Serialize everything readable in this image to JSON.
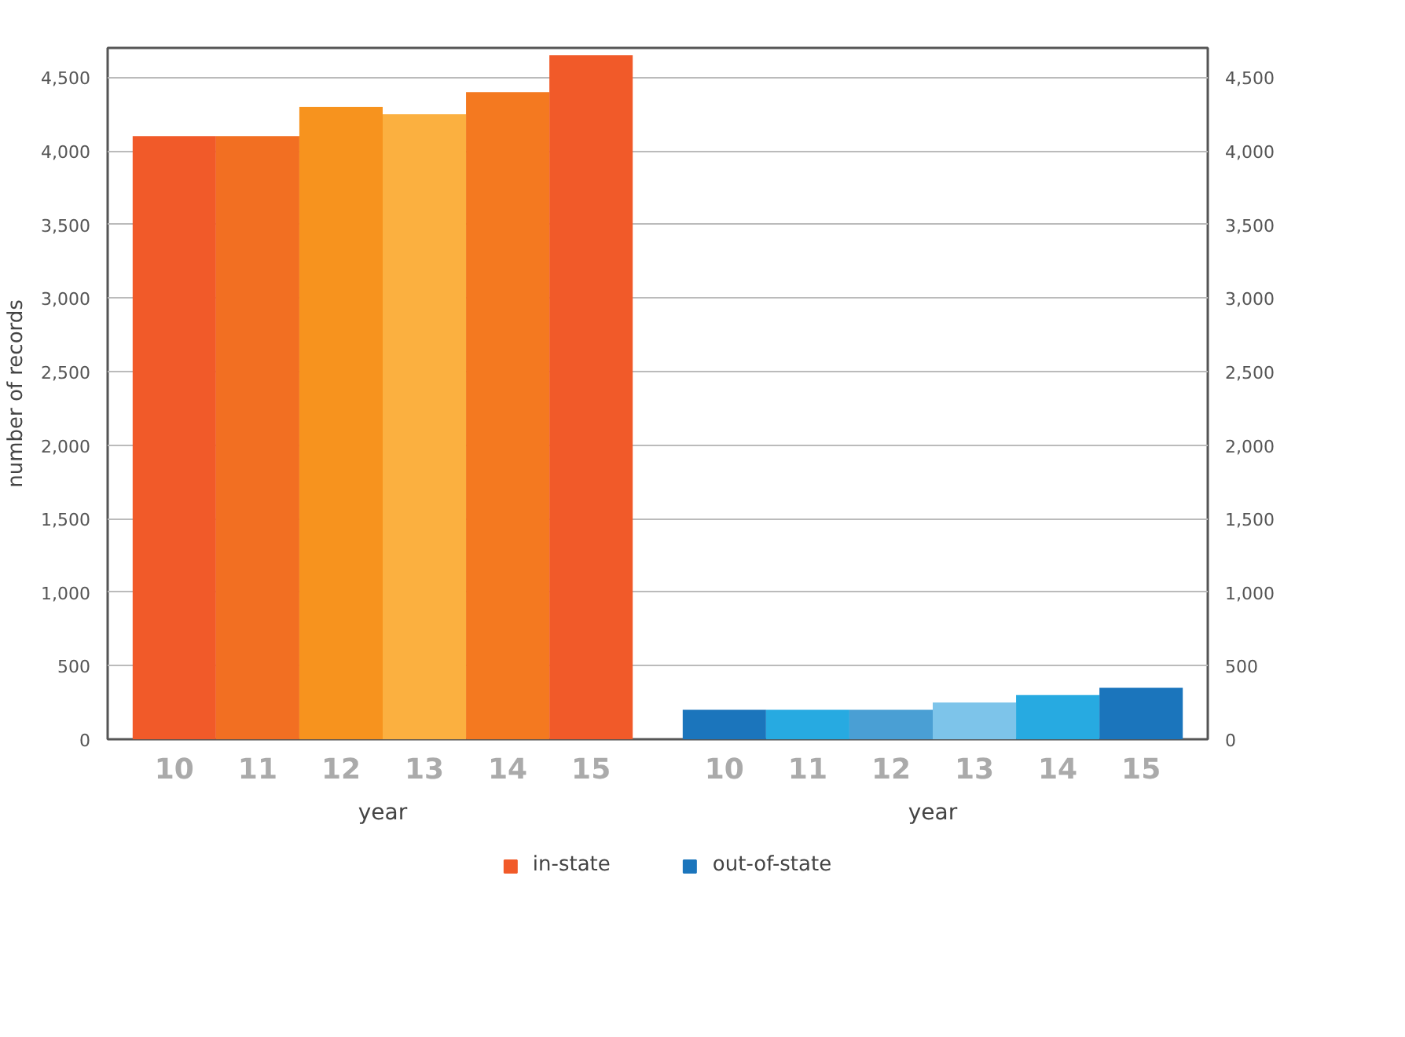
{
  "chart_data": {
    "type": "bar",
    "xlabel": "year",
    "ylabel": "number of records",
    "categories": [
      "10",
      "11",
      "12",
      "13",
      "14",
      "15",
      "10",
      "11",
      "12",
      "13",
      "14",
      "15"
    ],
    "series": [
      {
        "name": "in-state",
        "color": "#f15a29",
        "colors": [
          "#f15a29",
          "#f26f22",
          "#f7931e",
          "#fbb040",
          "#f47920",
          "#f15a29",
          null,
          null,
          null,
          null,
          null,
          null
        ],
        "values": [
          4100,
          4100,
          4300,
          4250,
          4400,
          4650,
          null,
          null,
          null,
          null,
          null,
          null
        ]
      },
      {
        "name": "out-of-state",
        "color": "#1b75bc",
        "colors": [
          null,
          null,
          null,
          null,
          null,
          null,
          "#1b75bc",
          "#27aae1",
          "#4a9fd4",
          "#7dc4ea",
          "#27aae1",
          "#1b75bc"
        ],
        "values": [
          null,
          null,
          null,
          null,
          null,
          null,
          200,
          200,
          200,
          250,
          300,
          350
        ]
      }
    ],
    "ylim": [
      0,
      4700
    ],
    "yticks": [
      0,
      {
        "value": 500,
        "label": "500"
      },
      {
        "value": 1000,
        "label": "1,000"
      },
      {
        "value": 1500,
        "label": "1,500"
      },
      {
        "value": 2000,
        "label": "2,000"
      },
      {
        "value": 2500,
        "label": "2,500"
      },
      {
        "value": 3000,
        "label": "3,000"
      },
      {
        "value": 3500,
        "label": "3,500"
      },
      {
        "value": 4000,
        "label": "4,000"
      },
      {
        "value": 4500,
        "label": "4,500"
      }
    ],
    "y2lim": [
      0,
      4700
    ],
    "y2ticks": [
      0,
      {
        "value": 500,
        "label": "500"
      },
      {
        "value": 1000,
        "label": "1,000"
      },
      {
        "value": 1500,
        "label": "1,500"
      },
      {
        "value": 2000,
        "label": "2,000"
      },
      {
        "value": 2500,
        "label": "2,500"
      },
      {
        "value": 3000,
        "label": "3,000"
      },
      {
        "value": 3500,
        "label": "3,500"
      },
      {
        "value": 4000,
        "label": "4,000"
      },
      {
        "value": 4500,
        "label": "4,500"
      }
    ],
    "grid": "y",
    "legend": "bottom",
    "annotations": [
      "year"
    ]
  }
}
